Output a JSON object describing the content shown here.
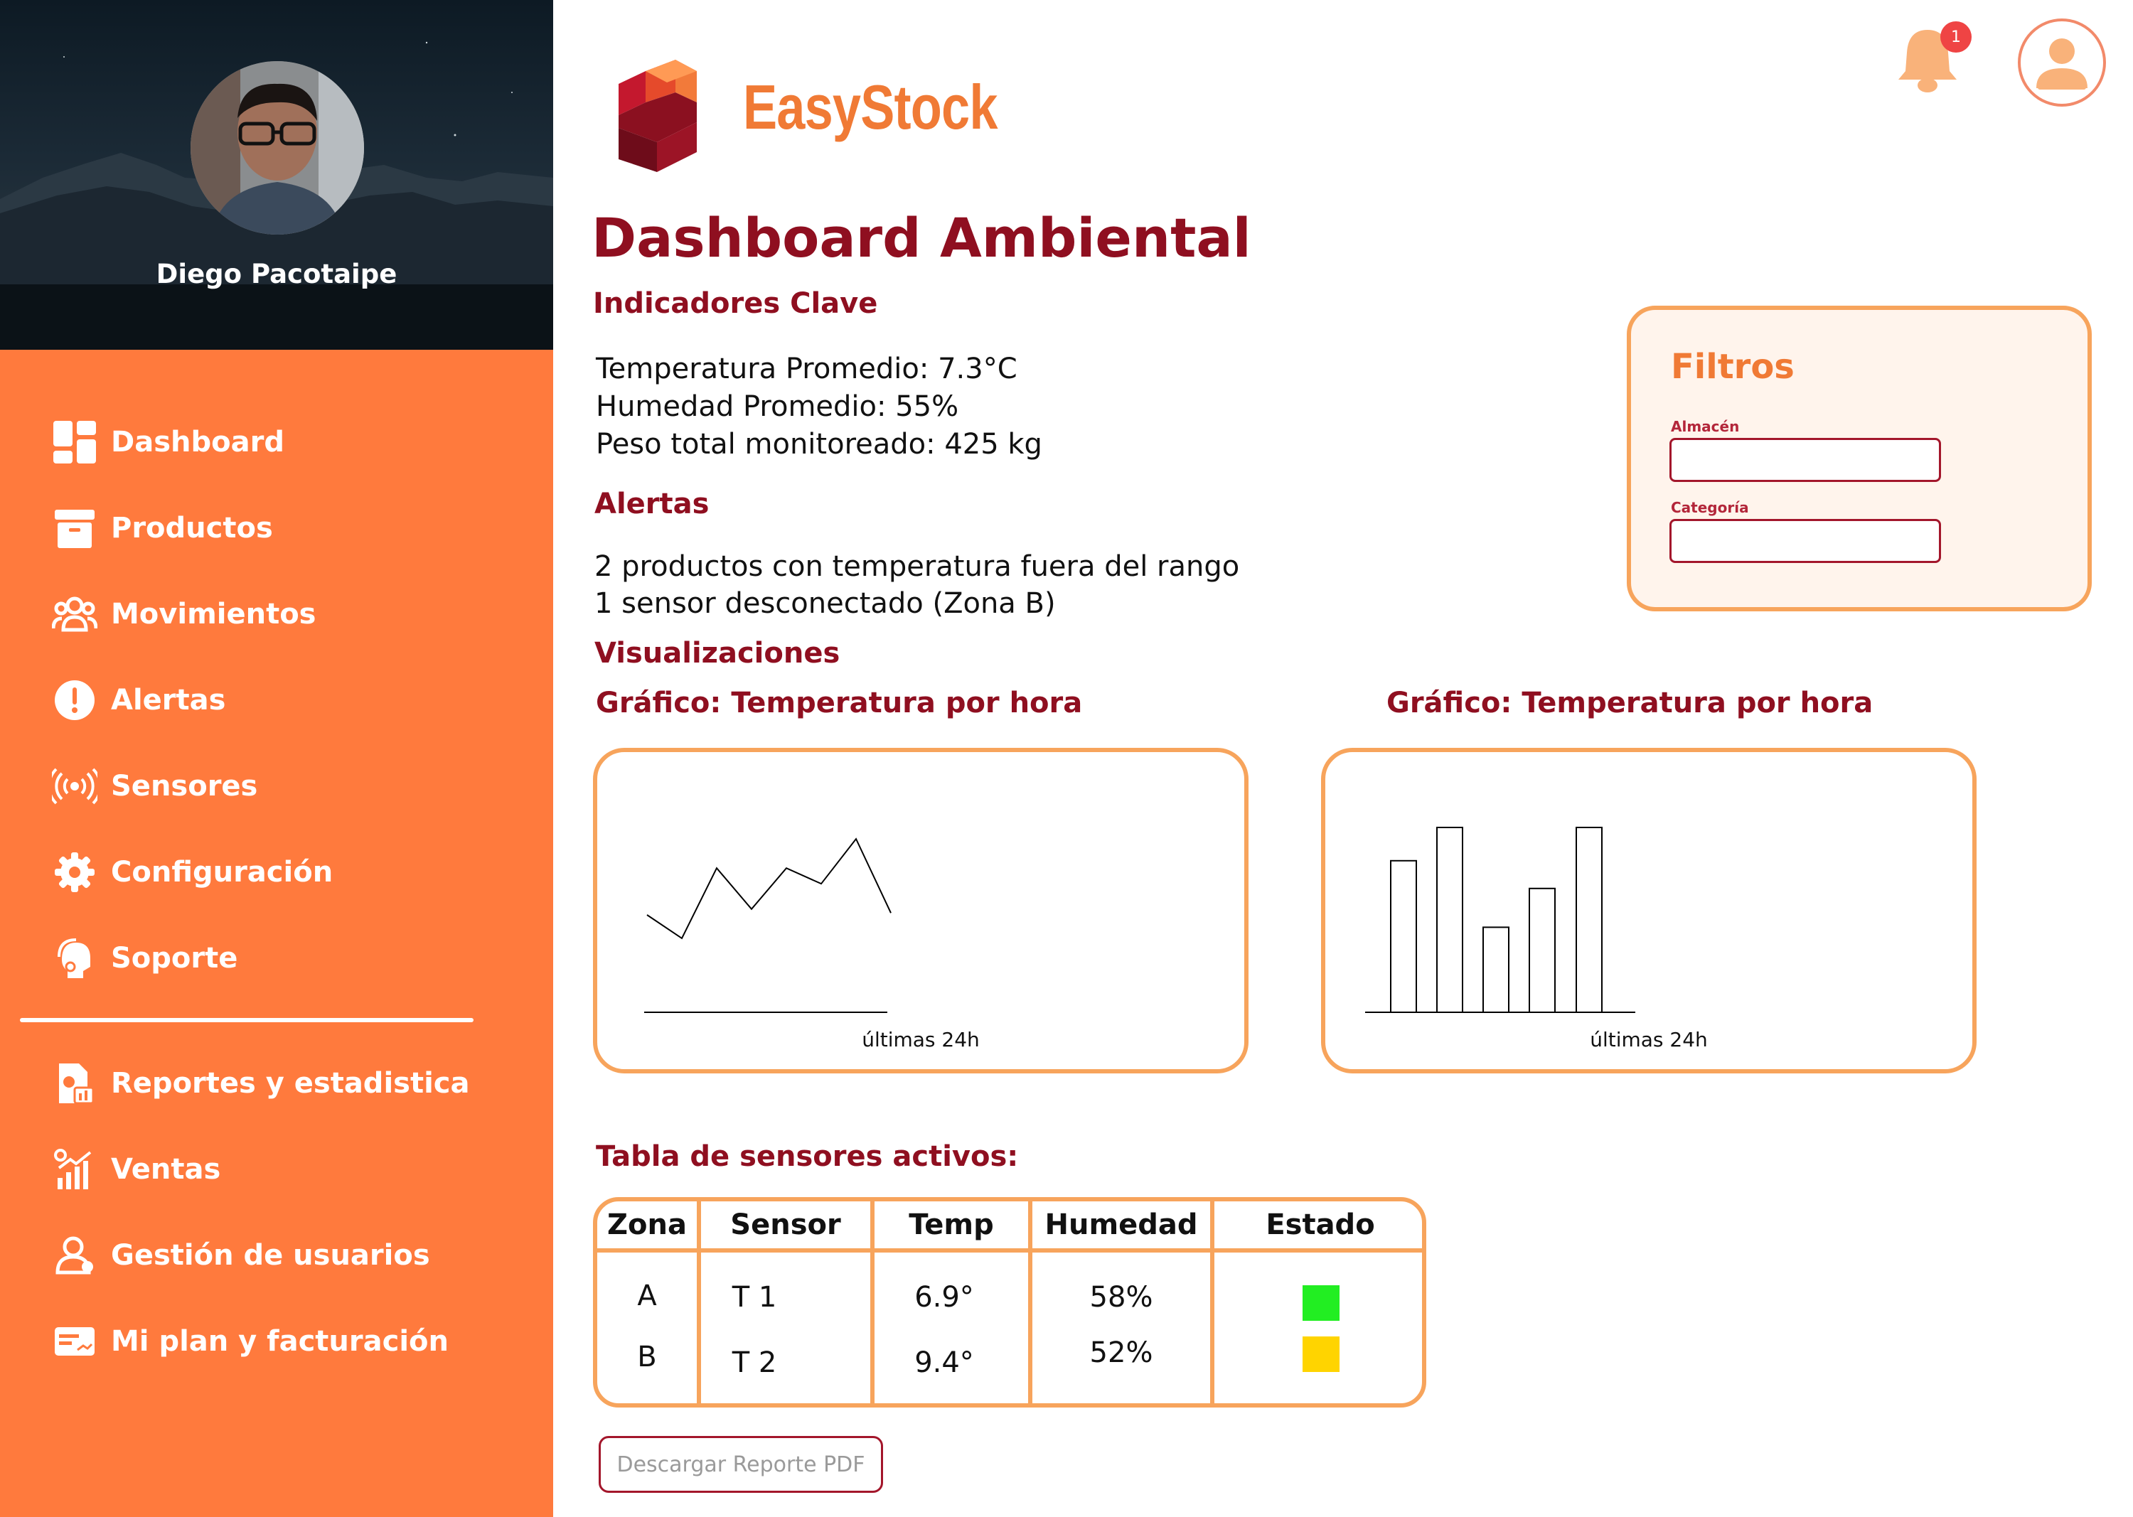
{
  "app": {
    "brand": "EasyStock"
  },
  "profile": {
    "name": "Diego Pacotaipe"
  },
  "sidebar": {
    "items": [
      {
        "label": "Dashboard",
        "icon": "dashboard-icon"
      },
      {
        "label": "Productos",
        "icon": "archive-box-icon"
      },
      {
        "label": "Movimientos",
        "icon": "users-group-icon"
      },
      {
        "label": "Alertas",
        "icon": "alert-circle-icon"
      },
      {
        "label": "Sensores",
        "icon": "broadcast-icon"
      },
      {
        "label": "Configuración",
        "icon": "gear-icon"
      },
      {
        "label": "Soporte",
        "icon": "support-headset-icon"
      }
    ],
    "secondary": [
      {
        "label": "Reportes y estadistica",
        "icon": "report-icon"
      },
      {
        "label": "Ventas",
        "icon": "sales-chart-icon"
      },
      {
        "label": "Gestión de usuarios",
        "icon": "user-manage-icon"
      },
      {
        "label": "Mi plan y facturación",
        "icon": "billing-icon"
      }
    ]
  },
  "header": {
    "notifications_count": "1"
  },
  "main": {
    "title": "Dashboard Ambiental",
    "indicators": {
      "heading": "Indicadores Clave",
      "lines": [
        "Temperatura Promedio: 7.3°C",
        "Humedad Promedio: 55%",
        "Peso total monitoreado: 425 kg"
      ]
    },
    "alerts": {
      "heading": "Alertas",
      "lines": [
        "2 productos con temperatura fuera del rango",
        "1 sensor desconectado (Zona B)"
      ]
    },
    "visualizations": {
      "heading": "Visualizaciones"
    },
    "filters": {
      "title": "Filtros",
      "warehouse_label": "Almacén",
      "category_label": "Categoría",
      "warehouse_value": "",
      "category_value": ""
    },
    "table": {
      "heading": "Tabla de sensores activos:",
      "columns": [
        "Zona",
        "Sensor",
        "Temp",
        "Humedad",
        "Estado"
      ],
      "rows": [
        {
          "zona": "A",
          "sensor": "T 1",
          "temp": "6.9°",
          "humedad": "58%",
          "estado_color": "#22ee22"
        },
        {
          "zona": "B",
          "sensor": "T 2",
          "temp": "9.4°",
          "humedad": "52%",
          "estado_color": "#ffd400"
        }
      ]
    },
    "pdf_button": "Descargar Reporte PDF"
  },
  "chart_data": [
    {
      "type": "line",
      "title": "Gráfico: Temperatura por hora",
      "xlabel": "últimas 24h",
      "ylabel": "",
      "values": [
        0.5,
        0.38,
        0.74,
        0.53,
        0.74,
        0.66,
        0.89,
        0.51
      ],
      "ylim": [
        0,
        1
      ]
    },
    {
      "type": "bar",
      "title": "Gráfico: Temperatura por hora",
      "xlabel": "últimas 24h",
      "ylabel": "",
      "values": [
        0.82,
        1.0,
        0.46,
        0.67,
        1.0
      ],
      "ylim": [
        0,
        1
      ]
    }
  ],
  "colors": {
    "accent": "#ff7a3d",
    "brand": "#f07a35",
    "heading": "#8f0f20",
    "card_border": "#f7a45c"
  }
}
